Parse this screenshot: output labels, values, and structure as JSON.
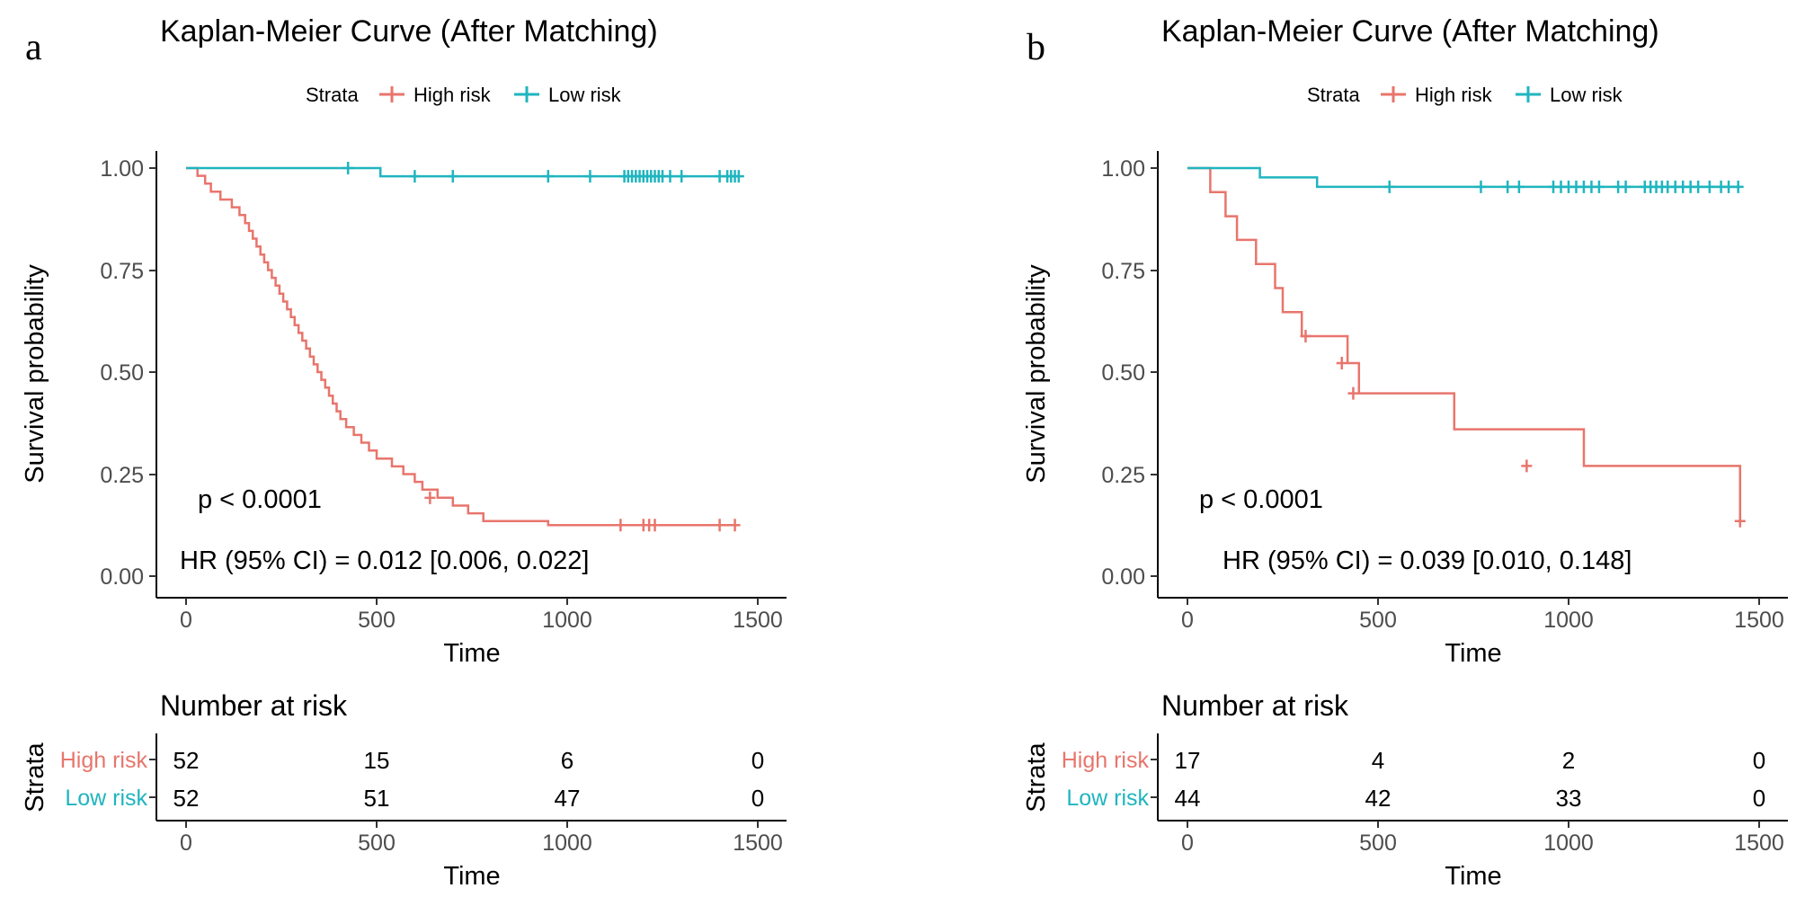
{
  "colors": {
    "high_risk": "#E8756C",
    "low_risk": "#1FB5BF"
  },
  "panels": [
    {
      "letter": "a",
      "title": "Kaplan-Meier Curve (After Matching)",
      "legend": {
        "title": "Strata",
        "items": [
          "High risk",
          "Low risk"
        ]
      },
      "annotations": {
        "pvalue": "p < 0.0001",
        "hr": "HR (95% CI) = 0.012 [0.006, 0.022]"
      },
      "xlabel": "Time",
      "ylabel": "Survival probability",
      "risk_table": {
        "title": "Number at risk",
        "ylabel": "Strata",
        "xlabel": "Time",
        "rows": [
          {
            "label": "High risk",
            "counts": [
              "52",
              "15",
              "6",
              "0"
            ]
          },
          {
            "label": "Low risk",
            "counts": [
              "52",
              "51",
              "47",
              "0"
            ]
          }
        ]
      }
    },
    {
      "letter": "b",
      "title": "Kaplan-Meier Curve (After Matching)",
      "legend": {
        "title": "Strata",
        "items": [
          "High risk",
          "Low risk"
        ]
      },
      "annotations": {
        "pvalue": "p < 0.0001",
        "hr": "HR (95% CI) = 0.039 [0.010, 0.148]"
      },
      "xlabel": "Time",
      "ylabel": "Survival probability",
      "risk_table": {
        "title": "Number at risk",
        "ylabel": "Strata",
        "xlabel": "Time",
        "rows": [
          {
            "label": "High risk",
            "counts": [
              "17",
              "4",
              "2",
              "0"
            ]
          },
          {
            "label": "Low risk",
            "counts": [
              "44",
              "42",
              "33",
              "0"
            ]
          }
        ]
      }
    }
  ],
  "chart_data": [
    {
      "type": "line",
      "title": "Kaplan-Meier Curve (After Matching)",
      "xlabel": "Time",
      "ylabel": "Survival probability",
      "xlim": [
        0,
        1500
      ],
      "ylim": [
        0,
        1
      ],
      "xticks": [
        "0",
        "500",
        "1000",
        "1500"
      ],
      "yticks": [
        "0.00",
        "0.25",
        "0.50",
        "0.75",
        "1.00"
      ],
      "series": [
        {
          "name": "High risk",
          "x": [
            0,
            30,
            50,
            65,
            90,
            120,
            140,
            155,
            165,
            175,
            185,
            195,
            205,
            215,
            225,
            235,
            245,
            255,
            265,
            275,
            285,
            295,
            305,
            315,
            325,
            335,
            345,
            355,
            365,
            375,
            385,
            395,
            405,
            420,
            440,
            460,
            480,
            500,
            540,
            570,
            600,
            620,
            660,
            700,
            740,
            780,
            820,
            950,
            1450
          ],
          "y": [
            1.0,
            0.981,
            0.962,
            0.942,
            0.923,
            0.904,
            0.885,
            0.865,
            0.846,
            0.827,
            0.808,
            0.788,
            0.769,
            0.75,
            0.731,
            0.712,
            0.692,
            0.673,
            0.654,
            0.635,
            0.615,
            0.596,
            0.577,
            0.558,
            0.538,
            0.519,
            0.5,
            0.481,
            0.462,
            0.442,
            0.423,
            0.404,
            0.385,
            0.365,
            0.346,
            0.327,
            0.308,
            0.288,
            0.269,
            0.25,
            0.231,
            0.212,
            0.192,
            0.173,
            0.154,
            0.135,
            0.135,
            0.125,
            0.125
          ],
          "censor_x": [
            640,
            1140,
            1200,
            1215,
            1230,
            1400,
            1440
          ],
          "censor_y": [
            0.192,
            0.125,
            0.125,
            0.125,
            0.125,
            0.125,
            0.125
          ]
        },
        {
          "name": "Low risk",
          "x": [
            0,
            510,
            1450
          ],
          "y": [
            1.0,
            0.98,
            0.98
          ],
          "censor_x": [
            425,
            600,
            700,
            950,
            1060,
            1150,
            1160,
            1170,
            1180,
            1190,
            1200,
            1210,
            1220,
            1230,
            1240,
            1250,
            1270,
            1300,
            1400,
            1420,
            1430,
            1440,
            1450
          ],
          "censor_y": [
            1.0,
            0.98,
            0.98,
            0.98,
            0.98,
            0.98,
            0.98,
            0.98,
            0.98,
            0.98,
            0.98,
            0.98,
            0.98,
            0.98,
            0.98,
            0.98,
            0.98,
            0.98,
            0.98,
            0.98,
            0.98,
            0.98,
            0.98
          ]
        }
      ]
    },
    {
      "type": "line",
      "title": "Kaplan-Meier Curve (After Matching)",
      "xlabel": "Time",
      "ylabel": "Survival probability",
      "xlim": [
        0,
        1500
      ],
      "ylim": [
        0,
        1
      ],
      "xticks": [
        "0",
        "500",
        "1000",
        "1500"
      ],
      "yticks": [
        "0.00",
        "0.25",
        "0.50",
        "0.75",
        "1.00"
      ],
      "series": [
        {
          "name": "High risk",
          "x": [
            0,
            60,
            100,
            130,
            180,
            230,
            250,
            300,
            420,
            450,
            700,
            1040,
            1450
          ],
          "y": [
            1.0,
            0.941,
            0.882,
            0.824,
            0.765,
            0.706,
            0.647,
            0.588,
            0.522,
            0.448,
            0.36,
            0.27,
            0.135
          ],
          "censor_x": [
            310,
            405,
            435,
            890,
            1450
          ],
          "censor_y": [
            0.588,
            0.522,
            0.448,
            0.27,
            0.135
          ]
        },
        {
          "name": "Low risk",
          "x": [
            0,
            190,
            340,
            1450
          ],
          "y": [
            1.0,
            0.977,
            0.954,
            0.954
          ],
          "censor_x": [
            530,
            770,
            840,
            870,
            960,
            980,
            1000,
            1020,
            1040,
            1060,
            1080,
            1130,
            1150,
            1200,
            1215,
            1230,
            1245,
            1260,
            1280,
            1300,
            1320,
            1340,
            1370,
            1400,
            1420,
            1445
          ],
          "censor_y": [
            0.954,
            0.954,
            0.954,
            0.954,
            0.954,
            0.954,
            0.954,
            0.954,
            0.954,
            0.954,
            0.954,
            0.954,
            0.954,
            0.954,
            0.954,
            0.954,
            0.954,
            0.954,
            0.954,
            0.954,
            0.954,
            0.954,
            0.954,
            0.954,
            0.954,
            0.954
          ]
        }
      ]
    }
  ]
}
